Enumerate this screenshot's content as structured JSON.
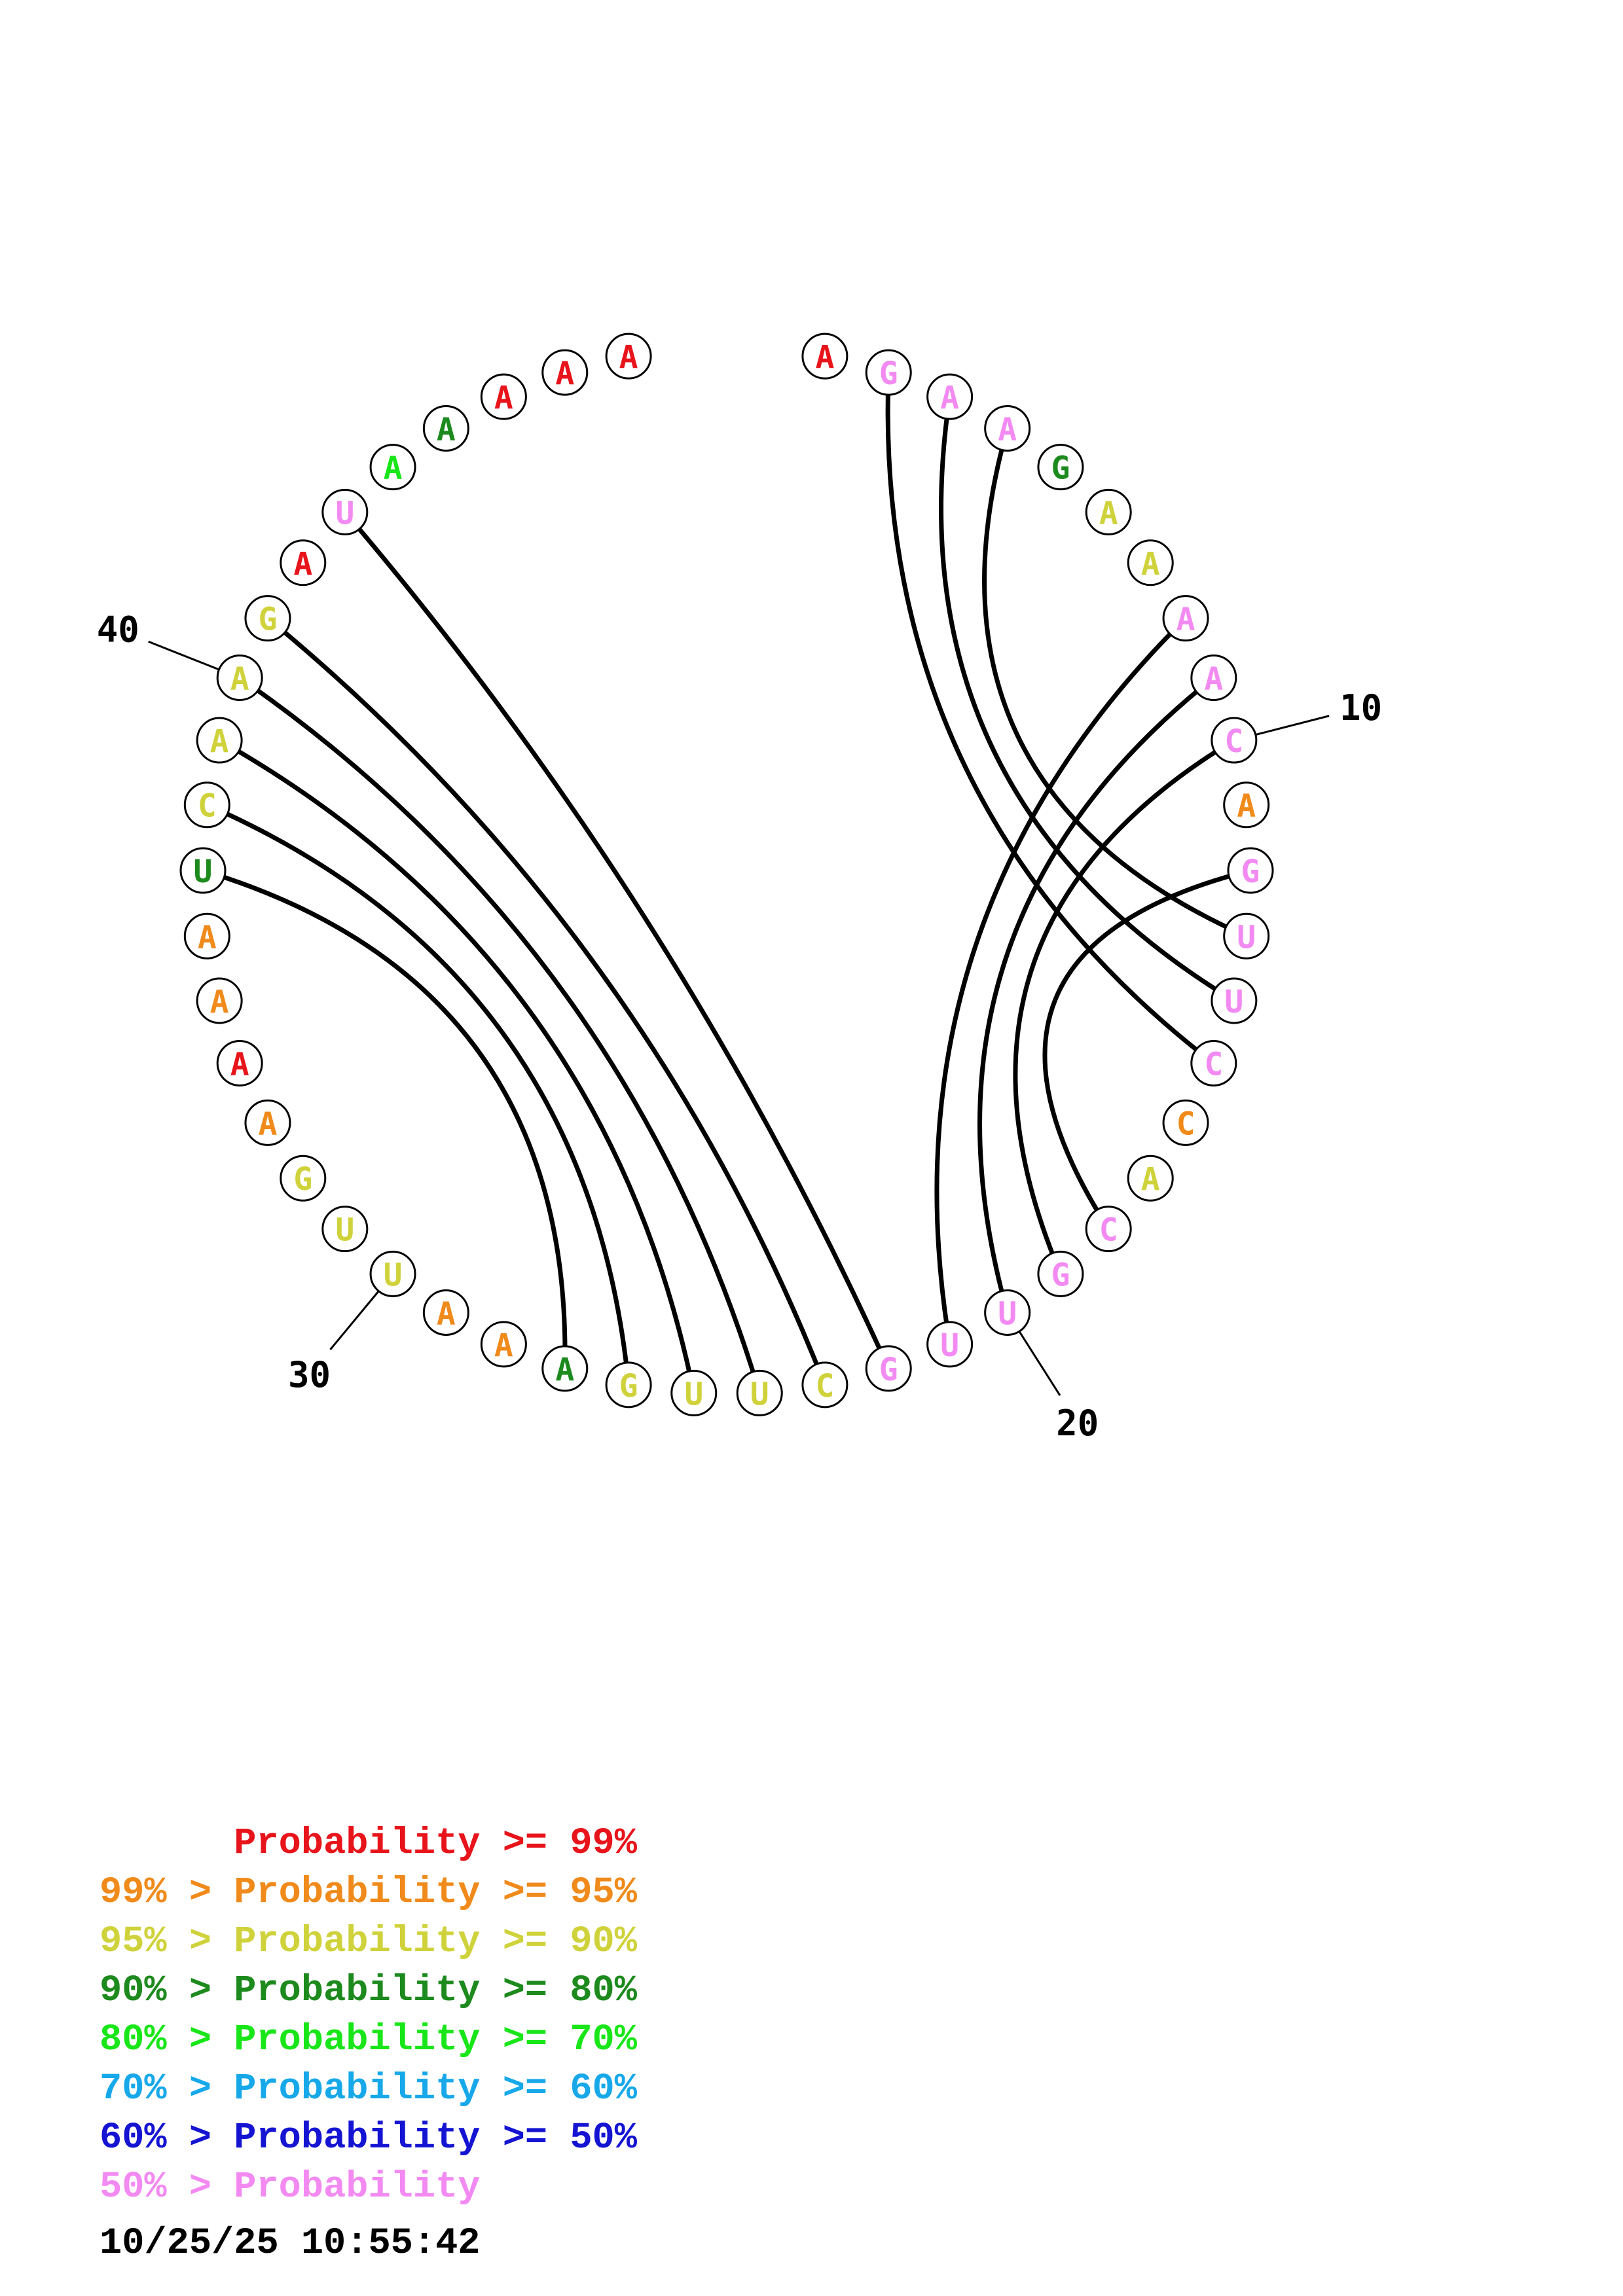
{
  "colors": {
    "p99": "#e8141b",
    "p95": "#f08a1a",
    "p90": "#cfd23a",
    "p80": "#1d8a1d",
    "p70": "#19e619",
    "p60": "#17a8ea",
    "p50": "#1414d2",
    "plow": "#f28af2"
  },
  "bases": [
    {
      "n": 1,
      "b": "A",
      "c": "p99"
    },
    {
      "n": 2,
      "b": "G",
      "c": "plow"
    },
    {
      "n": 3,
      "b": "A",
      "c": "plow"
    },
    {
      "n": 4,
      "b": "A",
      "c": "plow"
    },
    {
      "n": 5,
      "b": "G",
      "c": "p80"
    },
    {
      "n": 6,
      "b": "A",
      "c": "p90"
    },
    {
      "n": 7,
      "b": "A",
      "c": "p90"
    },
    {
      "n": 8,
      "b": "A",
      "c": "plow"
    },
    {
      "n": 9,
      "b": "A",
      "c": "plow"
    },
    {
      "n": 10,
      "b": "C",
      "c": "plow"
    },
    {
      "n": 11,
      "b": "A",
      "c": "p95"
    },
    {
      "n": 12,
      "b": "G",
      "c": "plow"
    },
    {
      "n": 13,
      "b": "U",
      "c": "plow"
    },
    {
      "n": 14,
      "b": "U",
      "c": "plow"
    },
    {
      "n": 15,
      "b": "C",
      "c": "plow"
    },
    {
      "n": 16,
      "b": "C",
      "c": "p95"
    },
    {
      "n": 17,
      "b": "A",
      "c": "p90"
    },
    {
      "n": 18,
      "b": "C",
      "c": "plow"
    },
    {
      "n": 19,
      "b": "G",
      "c": "plow"
    },
    {
      "n": 20,
      "b": "U",
      "c": "plow"
    },
    {
      "n": 21,
      "b": "U",
      "c": "plow"
    },
    {
      "n": 22,
      "b": "G",
      "c": "plow"
    },
    {
      "n": 23,
      "b": "C",
      "c": "p90"
    },
    {
      "n": 24,
      "b": "U",
      "c": "p90"
    },
    {
      "n": 25,
      "b": "U",
      "c": "p90"
    },
    {
      "n": 26,
      "b": "G",
      "c": "p90"
    },
    {
      "n": 27,
      "b": "A",
      "c": "p80"
    },
    {
      "n": 28,
      "b": "A",
      "c": "p95"
    },
    {
      "n": 29,
      "b": "A",
      "c": "p95"
    },
    {
      "n": 30,
      "b": "U",
      "c": "p90"
    },
    {
      "n": 31,
      "b": "U",
      "c": "p90"
    },
    {
      "n": 32,
      "b": "G",
      "c": "p90"
    },
    {
      "n": 33,
      "b": "A",
      "c": "p95"
    },
    {
      "n": 34,
      "b": "A",
      "c": "p99"
    },
    {
      "n": 35,
      "b": "A",
      "c": "p95"
    },
    {
      "n": 36,
      "b": "A",
      "c": "p95"
    },
    {
      "n": 37,
      "b": "U",
      "c": "p80"
    },
    {
      "n": 38,
      "b": "C",
      "c": "p90"
    },
    {
      "n": 39,
      "b": "A",
      "c": "p90"
    },
    {
      "n": 40,
      "b": "A",
      "c": "p90"
    },
    {
      "n": 41,
      "b": "G",
      "c": "p90"
    },
    {
      "n": 42,
      "b": "A",
      "c": "p99"
    },
    {
      "n": 43,
      "b": "U",
      "c": "plow"
    },
    {
      "n": 44,
      "b": "A",
      "c": "p70"
    },
    {
      "n": 45,
      "b": "A",
      "c": "p80"
    },
    {
      "n": 46,
      "b": "A",
      "c": "p99"
    },
    {
      "n": 47,
      "b": "A",
      "c": "p99"
    },
    {
      "n": 48,
      "b": "A",
      "c": "p99"
    }
  ],
  "pairs": [
    [
      2,
      15
    ],
    [
      3,
      14
    ],
    [
      4,
      13
    ],
    [
      8,
      21
    ],
    [
      9,
      20
    ],
    [
      10,
      19
    ],
    [
      12,
      18
    ],
    [
      22,
      43
    ],
    [
      23,
      41
    ],
    [
      24,
      40
    ],
    [
      25,
      39
    ],
    [
      26,
      38
    ],
    [
      27,
      37
    ]
  ],
  "position_labels": [
    {
      "n": 10,
      "text": "10"
    },
    {
      "n": 20,
      "text": "20"
    },
    {
      "n": 30,
      "text": "30"
    },
    {
      "n": 40,
      "text": "40"
    }
  ],
  "legend": [
    {
      "prefix": "",
      "text": "Probability >= 99%",
      "c": "p99"
    },
    {
      "prefix": "99% > ",
      "text": "Probability >= 95%",
      "c": "p95"
    },
    {
      "prefix": "95% > ",
      "text": "Probability >= 90%",
      "c": "p90"
    },
    {
      "prefix": "90% > ",
      "text": "Probability >= 80%",
      "c": "p80"
    },
    {
      "prefix": "80% > ",
      "text": "Probability >= 70%",
      "c": "p70"
    },
    {
      "prefix": "70% > ",
      "text": "Probability >= 60%",
      "c": "p60"
    },
    {
      "prefix": "60% > ",
      "text": "Probability >= 50%",
      "c": "p50"
    },
    {
      "prefix": "50% > ",
      "text": "Probability",
      "c": "plow"
    }
  ],
  "timestamp": "10/25/25 10:55:42"
}
